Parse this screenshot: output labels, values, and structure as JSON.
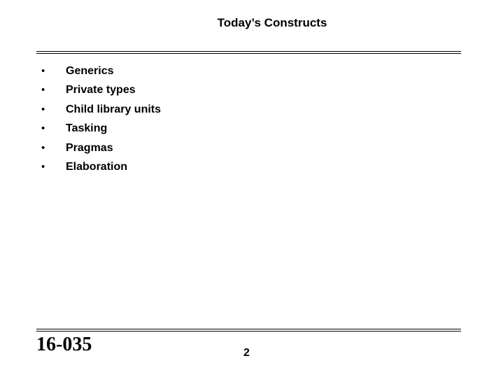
{
  "slide": {
    "title": "Today’s Constructs",
    "bullet_symbol": "•",
    "bullets": [
      "Generics",
      "Private types",
      "Child library units",
      "Tasking",
      "Pragmas",
      "Elaboration"
    ],
    "course_code": "16-035",
    "page_number": "2"
  }
}
